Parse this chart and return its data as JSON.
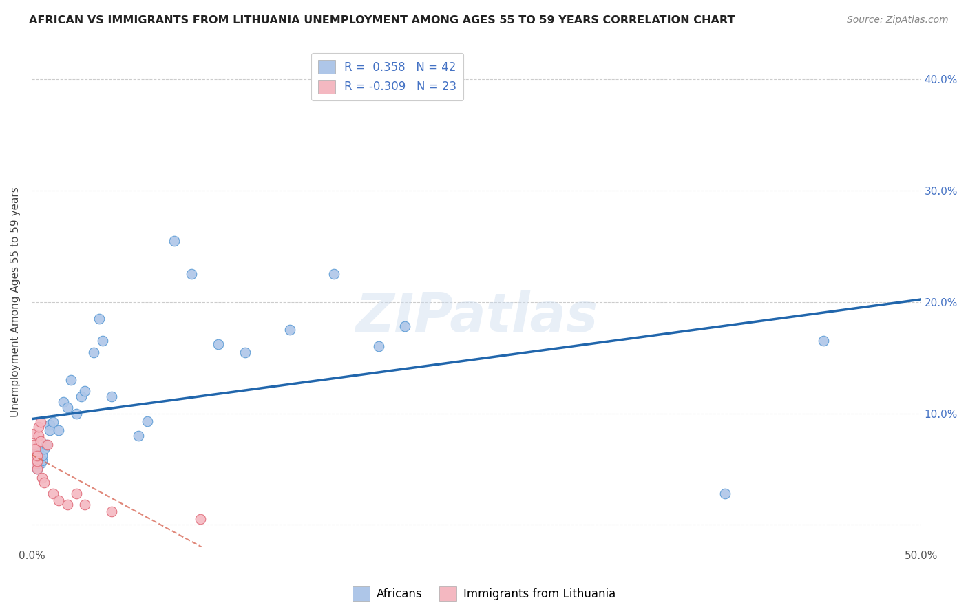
{
  "title": "AFRICAN VS IMMIGRANTS FROM LITHUANIA UNEMPLOYMENT AMONG AGES 55 TO 59 YEARS CORRELATION CHART",
  "source": "Source: ZipAtlas.com",
  "ylabel": "Unemployment Among Ages 55 to 59 years",
  "xlim": [
    0.0,
    0.5
  ],
  "ylim": [
    -0.02,
    0.42
  ],
  "africans_x": [
    0.001,
    0.001,
    0.002,
    0.002,
    0.002,
    0.003,
    0.003,
    0.003,
    0.004,
    0.004,
    0.005,
    0.005,
    0.006,
    0.006,
    0.007,
    0.008,
    0.01,
    0.01,
    0.012,
    0.015,
    0.018,
    0.02,
    0.022,
    0.025,
    0.028,
    0.03,
    0.035,
    0.038,
    0.04,
    0.045,
    0.06,
    0.065,
    0.08,
    0.09,
    0.105,
    0.12,
    0.145,
    0.17,
    0.195,
    0.21,
    0.39,
    0.445
  ],
  "africans_y": [
    0.06,
    0.065,
    0.055,
    0.06,
    0.065,
    0.05,
    0.055,
    0.06,
    0.06,
    0.065,
    0.055,
    0.06,
    0.058,
    0.062,
    0.068,
    0.072,
    0.09,
    0.085,
    0.092,
    0.085,
    0.11,
    0.105,
    0.13,
    0.1,
    0.115,
    0.12,
    0.155,
    0.185,
    0.165,
    0.115,
    0.08,
    0.093,
    0.255,
    0.225,
    0.162,
    0.155,
    0.175,
    0.225,
    0.16,
    0.178,
    0.028,
    0.165
  ],
  "lithuania_x": [
    0.001,
    0.001,
    0.001,
    0.002,
    0.002,
    0.002,
    0.003,
    0.003,
    0.003,
    0.004,
    0.004,
    0.005,
    0.005,
    0.006,
    0.007,
    0.009,
    0.012,
    0.015,
    0.02,
    0.025,
    0.03,
    0.045,
    0.095
  ],
  "lithuania_y": [
    0.06,
    0.072,
    0.082,
    0.055,
    0.062,
    0.068,
    0.05,
    0.057,
    0.062,
    0.08,
    0.088,
    0.092,
    0.075,
    0.042,
    0.038,
    0.072,
    0.028,
    0.022,
    0.018,
    0.028,
    0.018,
    0.012,
    0.005
  ],
  "africans_R": 0.358,
  "africans_N": 42,
  "lithuania_R": -0.309,
  "lithuania_N": 23,
  "african_color": "#aec6e8",
  "african_edge_color": "#5b9bd5",
  "african_line_color": "#2166ac",
  "lithuania_color": "#f4b8c1",
  "lithuania_edge_color": "#e06c7a",
  "lithuania_line_color": "#d6604d",
  "marker_size": 110,
  "watermark": "ZIPatlas",
  "background_color": "#ffffff",
  "grid_color": "#cccccc"
}
